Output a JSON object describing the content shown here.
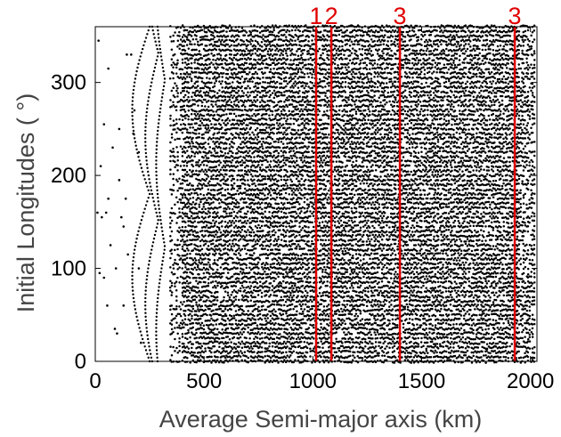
{
  "chart_data": {
    "type": "scatter",
    "xlabel": "Average Semi-major axis (km)",
    "ylabel": "Initial Longitudes (   °)",
    "xlim": [
      0,
      2030
    ],
    "ylim": [
      0,
      360
    ],
    "x_ticks": [
      "0",
      "500",
      "1000",
      "1500",
      "2000"
    ],
    "y_ticks": [
      "0",
      "100",
      "200",
      "300"
    ],
    "x_tick_values": [
      0,
      500,
      1000,
      1500,
      2000
    ],
    "y_tick_values": [
      0,
      100,
      200,
      300
    ],
    "grid": false,
    "marker_color": "#000000",
    "resonance_color": "#e00000",
    "resonance_lines": [
      {
        "x": 1015,
        "label": "1"
      },
      {
        "x": 1085,
        "label": "2"
      },
      {
        "x": 1400,
        "label": "3"
      },
      {
        "x": 1928,
        "label": "3"
      }
    ],
    "sparse_points": [
      [
        15,
        345
      ],
      [
        60,
        315
      ],
      [
        40,
        255
      ],
      [
        80,
        230
      ],
      [
        25,
        210
      ],
      [
        110,
        195
      ],
      [
        140,
        175
      ],
      [
        10,
        160
      ],
      [
        50,
        160
      ],
      [
        30,
        155
      ],
      [
        120,
        155
      ],
      [
        70,
        125
      ],
      [
        150,
        115
      ],
      [
        95,
        100
      ],
      [
        130,
        145
      ],
      [
        40,
        90
      ],
      [
        55,
        60
      ],
      [
        100,
        30
      ],
      [
        165,
        330
      ],
      [
        145,
        330
      ],
      [
        180,
        270
      ],
      [
        110,
        250
      ],
      [
        20,
        95
      ],
      [
        200,
        225
      ],
      [
        175,
        245
      ],
      [
        60,
        175
      ],
      [
        200,
        100
      ],
      [
        130,
        60
      ],
      [
        90,
        35
      ],
      [
        210,
        20
      ]
    ],
    "dense_columns": {
      "x_start": 345,
      "x_end": 2020,
      "spacing": 7,
      "y_step": 5
    }
  }
}
